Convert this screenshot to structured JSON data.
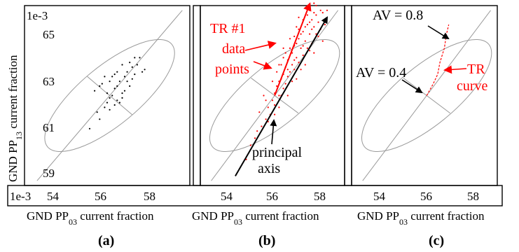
{
  "chart_data": [
    {
      "panel_label": "(a)",
      "type": "scatter",
      "scale_x": "1e-3",
      "scale_y": "1e-3",
      "xlabel": "GND PP₀₃ current fraction",
      "ylabel": "GND PP₁₃ current fraction",
      "x_ticks": [
        "54",
        "56",
        "58"
      ],
      "y_ticks": [
        "65",
        "63",
        "61",
        "59"
      ],
      "xlim": [
        52.6,
        59.2
      ],
      "ylim": [
        58.2,
        65.8
      ],
      "series": [
        {
          "color": "#000000",
          "points": [
            [
              55.2,
              60.6
            ],
            [
              55.5,
              61.3
            ],
            [
              55.6,
              61.0
            ],
            [
              55.4,
              62.2
            ],
            [
              55.8,
              61.5
            ],
            [
              55.9,
              61.7
            ],
            [
              56.0,
              61.9
            ],
            [
              56.1,
              62.0
            ],
            [
              56.2,
              62.3
            ],
            [
              56.3,
              61.8
            ],
            [
              55.7,
              62.5
            ],
            [
              56.4,
              62.6
            ],
            [
              56.5,
              62.1
            ],
            [
              56.6,
              62.8
            ],
            [
              56.7,
              63.0
            ],
            [
              56.8,
              62.4
            ],
            [
              56.9,
              63.2
            ],
            [
              57.0,
              62.9
            ],
            [
              57.1,
              63.3
            ],
            [
              57.2,
              63.6
            ],
            [
              56.0,
              62.6
            ],
            [
              56.3,
              63.0
            ],
            [
              56.5,
              61.9
            ],
            [
              56.2,
              61.6
            ],
            [
              55.9,
              62.1
            ],
            [
              56.6,
              62.2
            ],
            [
              56.8,
              63.4
            ],
            [
              57.3,
              63.0
            ],
            [
              56.1,
              62.8
            ],
            [
              56.4,
              61.7
            ],
            [
              55.8,
              62.8
            ],
            [
              56.7,
              62.6
            ],
            [
              57.0,
              63.6
            ],
            [
              56.3,
              62.4
            ],
            [
              56.9,
              62.7
            ],
            [
              56.0,
              61.4
            ],
            [
              55.6,
              62.4
            ],
            [
              57.4,
              63.1
            ],
            [
              56.5,
              63.3
            ],
            [
              56.2,
              62.9
            ]
          ]
        }
      ],
      "ellipse": {
        "center": [
          56.0,
          62.0
        ],
        "axis_end": [
          58.9,
          65.6
        ]
      }
    },
    {
      "panel_label": "(b)",
      "type": "scatter",
      "xlabel": "GND PP₀₃ current fraction",
      "x_ticks": [
        "54",
        "56",
        "58"
      ],
      "xlim": [
        52.6,
        59.2
      ],
      "ylim": [
        58.2,
        65.8
      ],
      "series": [
        {
          "name": "TR #1 data points",
          "color": "#ff0000",
          "points": [
            [
              54.7,
              59.3
            ],
            [
              55.1,
              60.2
            ],
            [
              55.4,
              60.7
            ],
            [
              55.6,
              61.0
            ],
            [
              55.7,
              61.5
            ],
            [
              55.9,
              61.8
            ],
            [
              56.0,
              62.1
            ],
            [
              56.1,
              62.4
            ],
            [
              56.2,
              62.0
            ],
            [
              56.3,
              62.7
            ],
            [
              56.4,
              62.9
            ],
            [
              56.5,
              63.2
            ],
            [
              56.6,
              63.5
            ],
            [
              56.7,
              63.0
            ],
            [
              56.8,
              63.8
            ],
            [
              56.9,
              64.1
            ],
            [
              57.0,
              63.6
            ],
            [
              57.1,
              64.4
            ],
            [
              57.2,
              64.0
            ],
            [
              57.3,
              64.7
            ],
            [
              57.4,
              64.3
            ],
            [
              57.5,
              65.0
            ],
            [
              57.6,
              64.6
            ],
            [
              57.7,
              65.2
            ],
            [
              57.8,
              64.9
            ],
            [
              57.9,
              65.4
            ],
            [
              58.0,
              65.1
            ],
            [
              58.1,
              64.8
            ],
            [
              58.2,
              65.5
            ],
            [
              56.2,
              62.6
            ],
            [
              56.4,
              62.3
            ],
            [
              56.6,
              62.8
            ],
            [
              56.8,
              63.3
            ],
            [
              57.0,
              64.2
            ],
            [
              57.2,
              64.6
            ],
            [
              57.4,
              64.9
            ],
            [
              57.6,
              65.1
            ],
            [
              57.8,
              65.5
            ],
            [
              56.9,
              63.1
            ],
            [
              56.5,
              62.5
            ],
            [
              57.1,
              63.4
            ],
            [
              57.3,
              63.7
            ],
            [
              57.5,
              64.0
            ],
            [
              57.7,
              64.2
            ],
            [
              57.9,
              64.6
            ],
            [
              58.1,
              65.6
            ],
            [
              56.3,
              63.3
            ],
            [
              56.7,
              64.0
            ],
            [
              57.1,
              64.8
            ],
            [
              57.6,
              65.6
            ],
            [
              56.0,
              61.6
            ],
            [
              55.8,
              61.2
            ],
            [
              55.3,
              61.3
            ],
            [
              56.2,
              61.5
            ],
            [
              56.6,
              62.0
            ],
            [
              57.0,
              62.7
            ],
            [
              57.4,
              63.3
            ],
            [
              57.8,
              63.8
            ],
            [
              58.2,
              64.3
            ],
            [
              55.9,
              62.6
            ],
            [
              56.4,
              63.6
            ],
            [
              56.9,
              64.5
            ],
            [
              57.5,
              65.4
            ],
            [
              57.9,
              65.8
            ],
            [
              56.1,
              63.0
            ],
            [
              56.7,
              64.4
            ],
            [
              57.3,
              65.2
            ],
            [
              55.5,
              62.0
            ],
            [
              58.0,
              64.5
            ],
            [
              57.2,
              63.1
            ],
            [
              56.8,
              62.6
            ],
            [
              56.3,
              62.0
            ],
            [
              55.7,
              60.9
            ],
            [
              55.2,
              60.5
            ],
            [
              54.9,
              59.9
            ],
            [
              56.5,
              63.8
            ],
            [
              57.0,
              64.9
            ],
            [
              57.6,
              63.9
            ],
            [
              58.3,
              65.0
            ],
            [
              58.4,
              65.6
            ],
            [
              56.6,
              63.1
            ],
            [
              57.3,
              64.1
            ],
            [
              57.7,
              64.8
            ],
            [
              56.9,
              63.5
            ],
            [
              56.2,
              63.3
            ],
            [
              57.1,
              65.3
            ],
            [
              57.8,
              65.9
            ],
            [
              56.4,
              64.0
            ],
            [
              55.6,
              61.8
            ],
            [
              56.0,
              61.2
            ]
          ]
        }
      ],
      "ellipse": {
        "center": [
          56.0,
          62.0
        ],
        "axis_end": [
          58.9,
          65.6
        ]
      },
      "black_arrow": {
        "from": [
          54.2,
          58.6
        ],
        "to": [
          58.4,
          65.3
        ]
      },
      "red_arrow": {
        "from": [
          56.0,
          62.0
        ],
        "to": [
          57.6,
          67.0
        ]
      },
      "annotations": {
        "tr_label": [
          "TR #1",
          "data",
          "points"
        ],
        "axis_label": [
          "principal",
          "axis"
        ]
      }
    },
    {
      "panel_label": "(c)",
      "type": "line",
      "xlabel": "GND PP₀₃ current fraction",
      "x_ticks": [
        "54",
        "56",
        "58"
      ],
      "xlim": [
        52.6,
        59.2
      ],
      "ylim": [
        58.2,
        65.8
      ],
      "series": [
        {
          "name": "TR curve",
          "color": "#ff0000",
          "points": [
            [
              56.0,
              62.0
            ],
            [
              56.3,
              62.5
            ],
            [
              56.5,
              62.9
            ],
            [
              56.6,
              63.4
            ],
            [
              56.8,
              64.0
            ],
            [
              56.9,
              64.6
            ],
            [
              57.0,
              65.0
            ]
          ]
        }
      ],
      "ellipse": {
        "center": [
          56.0,
          62.0
        ],
        "axis_end": [
          58.9,
          65.6
        ]
      },
      "annotations": {
        "av_high": "AV = 0.8",
        "av_low": "AV = 0.4",
        "tr_label": [
          "TR",
          "curve"
        ]
      }
    }
  ],
  "labels": {
    "a": "(a)",
    "b": "(b)",
    "c": "(c)"
  }
}
